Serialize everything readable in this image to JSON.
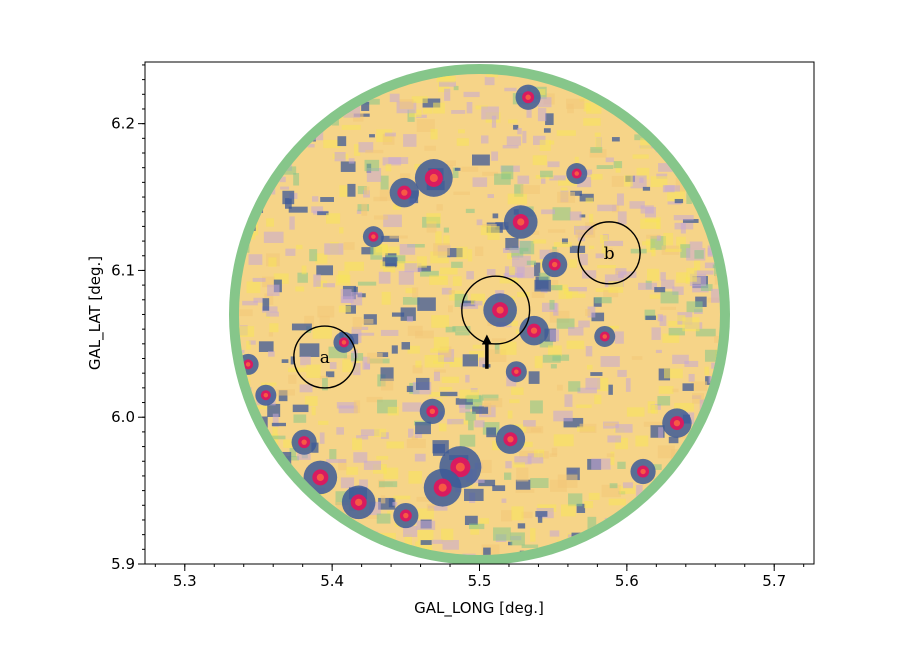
{
  "chart_data": {
    "type": "heatmap",
    "xlabel": "GAL_LONG [deg.]",
    "ylabel": "GAL_LAT [deg.]",
    "xlim": [
      5.273,
      5.727
    ],
    "ylim": [
      5.9,
      6.242
    ],
    "x_ticks": [
      "5.3",
      "5.4",
      "5.5",
      "5.6",
      "5.7"
    ],
    "x_tick_values": [
      5.3,
      5.4,
      5.5,
      5.6,
      5.7
    ],
    "y_ticks": [
      "5.9",
      "6.0",
      "6.1",
      "6.2"
    ],
    "y_tick_values": [
      5.9,
      6.0,
      6.1,
      6.2
    ],
    "field": {
      "center": [
        5.5,
        6.07
      ],
      "radius_deg": 0.17
    },
    "regions": [
      {
        "label": "a",
        "x": 5.395,
        "y": 6.041,
        "r": 0.021
      },
      {
        "label": "b",
        "x": 5.588,
        "y": 6.112,
        "r": 0.021
      },
      {
        "label": "",
        "x": 5.511,
        "y": 6.073,
        "r": 0.023
      }
    ],
    "arrow": {
      "x": 5.505,
      "y_from": 6.033,
      "y_to": 6.055
    },
    "colors": {
      "outer_ring": "#86c68a",
      "background": "#f6d488",
      "hot_spot": "#d81b60",
      "warm": "#f7e35a",
      "cool": "#c7a7d6",
      "dark": "#3d5a98"
    }
  }
}
